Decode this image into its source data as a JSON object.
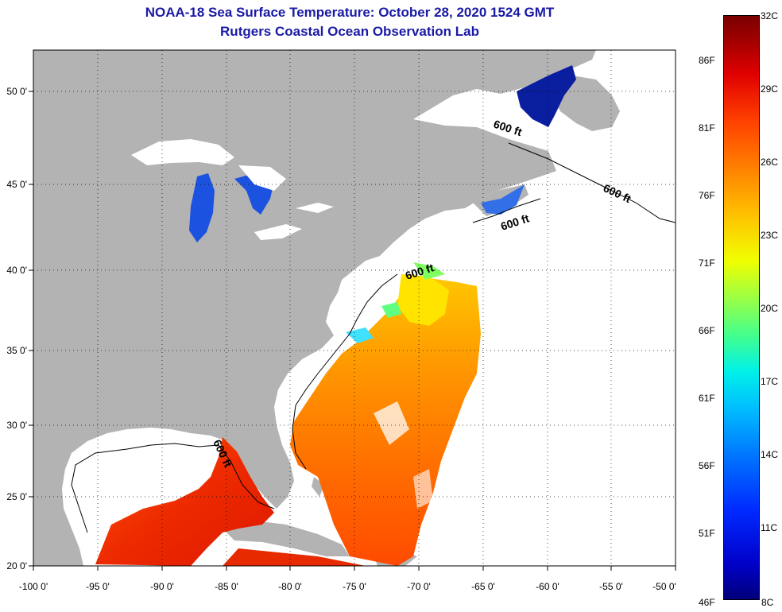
{
  "title": {
    "line1": "NOAA-18 Sea Surface Temperature:  October 28, 2020 1524 GMT",
    "line2": "Rutgers Coastal Ocean Observation Lab"
  },
  "map": {
    "lon_range": [
      -100,
      -50
    ],
    "lat_range": [
      20,
      52
    ],
    "lon_labels": [
      "-100 0'",
      "-95 0'",
      "-90 0'",
      "-85 0'",
      "-80 0'",
      "-75 0'",
      "-70 0'",
      "-65 0'",
      "-60 0'",
      "-55 0'",
      "-50 0'"
    ],
    "lat_labels": [
      "50 0'",
      "45 0'",
      "40 0'",
      "35 0'",
      "30 0'",
      "25 0'",
      "20 0'"
    ],
    "contour_labels": [
      "600 ft",
      "600 ft",
      "600 ft",
      "600 ft",
      "600 ft"
    ],
    "land_color": "#b3b3b3",
    "no_data_color": "#ffffff"
  },
  "colorbar": {
    "celsius_labels": [
      "32C",
      "29C",
      "26C",
      "23C",
      "20C",
      "17C",
      "14C",
      "11C",
      "8C"
    ],
    "fahrenheit_labels": [
      "86F",
      "81F",
      "76F",
      "71F",
      "66F",
      "61F",
      "56F",
      "51F",
      "46F"
    ],
    "range_c": [
      8,
      32
    ]
  }
}
